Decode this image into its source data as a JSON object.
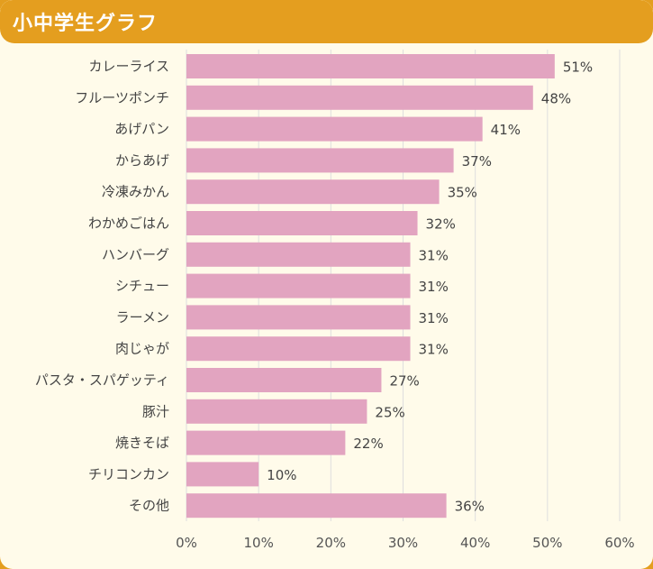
{
  "header": {
    "title": "小中学生グラフ"
  },
  "colors": {
    "header_bg": "#e49e1f",
    "panel_bg": "#fffbea",
    "bar": "#e2a4c0",
    "grid": "#dedede"
  },
  "chart_data": {
    "type": "bar",
    "orientation": "horizontal",
    "title": "小中学生グラフ",
    "categories": [
      "カレーライス",
      "フルーツポンチ",
      "あげパン",
      "からあげ",
      "冷凍みかん",
      "わかめごはん",
      "ハンバーグ",
      "シチュー",
      "ラーメン",
      "肉じゃが",
      "パスタ・スパゲッティ",
      "豚汁",
      "焼きそば",
      "チリコンカン",
      "その他"
    ],
    "values": [
      51,
      48,
      41,
      37,
      35,
      32,
      31,
      31,
      31,
      31,
      27,
      25,
      22,
      10,
      36
    ],
    "value_labels": [
      "51%",
      "48%",
      "41%",
      "37%",
      "35%",
      "32%",
      "31%",
      "31%",
      "31%",
      "31%",
      "27%",
      "25%",
      "22%",
      "10%",
      "36%"
    ],
    "xlim": [
      0,
      60
    ],
    "x_ticks": [
      0,
      10,
      20,
      30,
      40,
      50,
      60
    ],
    "x_tick_labels": [
      "0%",
      "10%",
      "20%",
      "30%",
      "40%",
      "50%",
      "60%"
    ],
    "xlabel": "",
    "ylabel": "",
    "grid": true,
    "legend": "none"
  }
}
